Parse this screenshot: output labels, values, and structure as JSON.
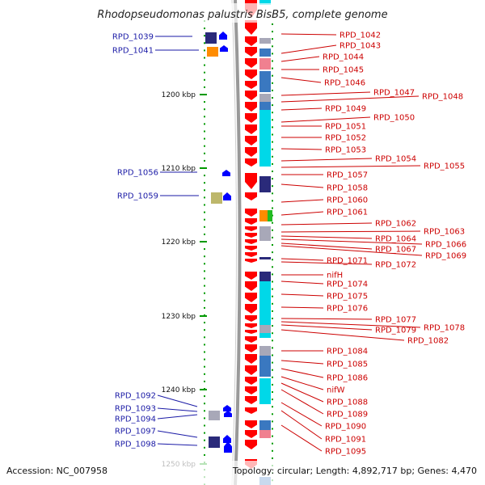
{
  "title": "Rhodopseudomonas palustris BisB5, complete genome",
  "footer": {
    "accession": "Accession: NC_007958",
    "topology": "Topology: circular; Length: 4,892,717 bp; Genes: 4,470"
  },
  "scale_labels": [
    "1200 kbp",
    "1210 kbp",
    "1220 kbp",
    "1230 kbp",
    "1240 kbp",
    "1250 kbp"
  ],
  "labels_left": [
    "RPD_1039",
    "RPD_1041",
    "RPD_1056",
    "RPD_1059",
    "RPD_1092",
    "RPD_1093",
    "RPD_1094",
    "RPD_1097",
    "RPD_1098"
  ],
  "labels_right": [
    "RPD_1042",
    "RPD_1043",
    "RPD_1044",
    "RPD_1045",
    "RPD_1046",
    "RPD_1047",
    "RPD_1048",
    "RPD_1049",
    "RPD_1050",
    "RPD_1051",
    "RPD_1052",
    "RPD_1053",
    "RPD_1054",
    "RPD_1055",
    "RPD_1057",
    "RPD_1058",
    "RPD_1060",
    "RPD_1061",
    "RPD_1062",
    "RPD_1063",
    "RPD_1064",
    "RPD_1066",
    "RPD_1067",
    "RPD_1069",
    "RPD_1071",
    "RPD_1072",
    "nifH",
    "RPD_1074",
    "RPD_1075",
    "RPD_1076",
    "RPD_1077",
    "RPD_1078",
    "RPD_1079",
    "RPD_1082",
    "RPD_1084",
    "RPD_1085",
    "RPD_1086",
    "nifW",
    "RPD_1088",
    "RPD_1089",
    "RPD_1090",
    "RPD_1091",
    "RPD_1095"
  ],
  "colors": {
    "forward_gene": "#ff0000",
    "reverse_gene": "#0000ff",
    "backbone": "#999999",
    "tick": "#009900",
    "label_right": "#cc0000",
    "label_left": "#1a1aa6",
    "cog_cyan": "#00d8e8",
    "cog_blue": "#3a78c0",
    "cog_navy": "#2a2a7a",
    "cog_pink": "#f08090",
    "cog_gray": "#a8a8b8",
    "cog_orange": "#ff8c00",
    "cog_green": "#22bb22",
    "cog_khaki": "#bdb76b"
  }
}
